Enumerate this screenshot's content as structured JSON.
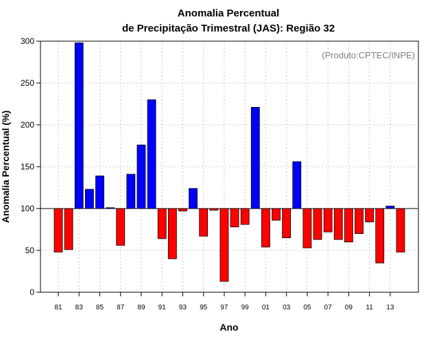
{
  "chart_data": {
    "type": "bar",
    "title_line1": "Anomalia Percentual",
    "title_line2": "de Precipitação Trimestral (JAS): Região 32",
    "credit": "(Produto:CPTEC/INPE)",
    "xlabel": "Ano",
    "ylabel": "Anomalia Percentual (%)",
    "ylim": [
      0,
      300
    ],
    "yticks": [
      0,
      50,
      100,
      150,
      200,
      250,
      300
    ],
    "baseline": 100,
    "grid": true,
    "categories": [
      "81",
      "82",
      "83",
      "84",
      "85",
      "86",
      "87",
      "88",
      "89",
      "90",
      "91",
      "92",
      "93",
      "94",
      "95",
      "96",
      "97",
      "98",
      "99",
      "00",
      "01",
      "02",
      "03",
      "04",
      "05",
      "06",
      "07",
      "08",
      "09",
      "10",
      "11",
      "12",
      "13",
      "14"
    ],
    "tick_labels": [
      "81",
      "83",
      "85",
      "87",
      "89",
      "91",
      "93",
      "95",
      "97",
      "99",
      "01",
      "03",
      "05",
      "07",
      "09",
      "11",
      "13"
    ],
    "values": [
      48,
      51,
      298,
      123,
      139,
      101,
      56,
      141,
      176,
      230,
      64,
      40,
      97,
      124,
      67,
      98,
      13,
      78,
      81,
      221,
      54,
      86,
      65,
      156,
      53,
      63,
      72,
      63,
      60,
      70,
      84,
      35,
      103,
      48
    ],
    "colors": {
      "above": "#0000ff",
      "below": "#ff0000",
      "outline": "#000000"
    }
  }
}
